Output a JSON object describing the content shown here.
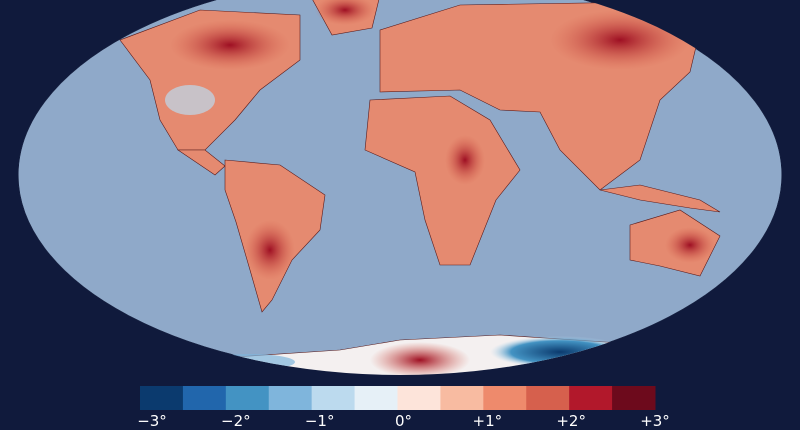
{
  "map": {
    "legend": {
      "colors": [
        "#0b3a6e",
        "#2166ac",
        "#4393c3",
        "#7fb5dc",
        "#bcdaee",
        "#e6f0f7",
        "#fde4da",
        "#f8bba1",
        "#ee8a6c",
        "#d6604d",
        "#b2182b",
        "#6d0a1c"
      ],
      "range": [
        -3,
        3
      ],
      "ticks": [
        {
          "value": -3,
          "label": "−3°"
        },
        {
          "value": -2,
          "label": "−2°"
        },
        {
          "value": -1,
          "label": "−1°"
        },
        {
          "value": 0,
          "label": "0°"
        },
        {
          "value": 1,
          "label": "+1°"
        },
        {
          "value": 2,
          "label": "+2°"
        },
        {
          "value": 3,
          "label": "+3°"
        }
      ]
    }
  }
}
